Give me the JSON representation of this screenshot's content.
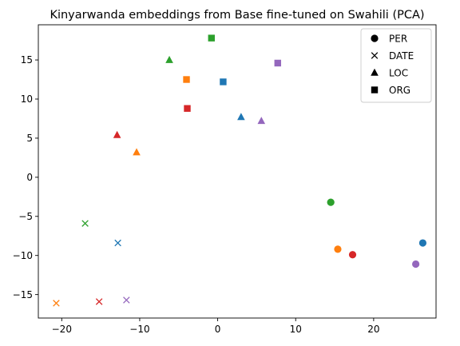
{
  "chart_data": {
    "type": "scatter",
    "title": "Kinyarwanda embeddings from Base fine-tuned on Swahili (PCA)",
    "xlabel": "",
    "ylabel": "",
    "xlim": [
      -23,
      28
    ],
    "ylim": [
      -18,
      19.5
    ],
    "xticks": [
      -20,
      -10,
      0,
      10,
      20
    ],
    "yticks": [
      -15,
      -10,
      -5,
      0,
      5,
      10,
      15
    ],
    "grid": false,
    "legend_position": "top-right",
    "marker_legend": [
      {
        "label": "PER",
        "marker": "circle"
      },
      {
        "label": "DATE",
        "marker": "x"
      },
      {
        "label": "LOC",
        "marker": "triangle"
      },
      {
        "label": "ORG",
        "marker": "square"
      }
    ],
    "points": [
      {
        "x": 14.5,
        "y": -3.2,
        "marker": "circle",
        "color": "#2ca02c"
      },
      {
        "x": 26.3,
        "y": -8.4,
        "marker": "circle",
        "color": "#1f77b4"
      },
      {
        "x": 15.4,
        "y": -9.2,
        "marker": "circle",
        "color": "#ff7f0e"
      },
      {
        "x": 17.3,
        "y": -9.9,
        "marker": "circle",
        "color": "#d62728"
      },
      {
        "x": 25.4,
        "y": -11.1,
        "marker": "circle",
        "color": "#9467bd"
      },
      {
        "x": -17.0,
        "y": -5.9,
        "marker": "x",
        "color": "#2ca02c"
      },
      {
        "x": -12.8,
        "y": -8.4,
        "marker": "x",
        "color": "#1f77b4"
      },
      {
        "x": -20.7,
        "y": -16.1,
        "marker": "x",
        "color": "#ff7f0e"
      },
      {
        "x": -15.2,
        "y": -15.9,
        "marker": "x",
        "color": "#d62728"
      },
      {
        "x": -11.7,
        "y": -15.7,
        "marker": "x",
        "color": "#9467bd"
      },
      {
        "x": -6.2,
        "y": 15.0,
        "marker": "triangle",
        "color": "#2ca02c"
      },
      {
        "x": 3.0,
        "y": 7.7,
        "marker": "triangle",
        "color": "#1f77b4"
      },
      {
        "x": 5.6,
        "y": 7.2,
        "marker": "triangle",
        "color": "#9467bd"
      },
      {
        "x": -12.9,
        "y": 5.4,
        "marker": "triangle",
        "color": "#d62728"
      },
      {
        "x": -10.4,
        "y": 3.2,
        "marker": "triangle",
        "color": "#ff7f0e"
      },
      {
        "x": -0.8,
        "y": 17.8,
        "marker": "square",
        "color": "#2ca02c"
      },
      {
        "x": 7.7,
        "y": 14.6,
        "marker": "square",
        "color": "#9467bd"
      },
      {
        "x": -4.0,
        "y": 12.5,
        "marker": "square",
        "color": "#ff7f0e"
      },
      {
        "x": 0.7,
        "y": 12.2,
        "marker": "square",
        "color": "#1f77b4"
      },
      {
        "x": -3.9,
        "y": 8.8,
        "marker": "square",
        "color": "#d62728"
      }
    ]
  }
}
